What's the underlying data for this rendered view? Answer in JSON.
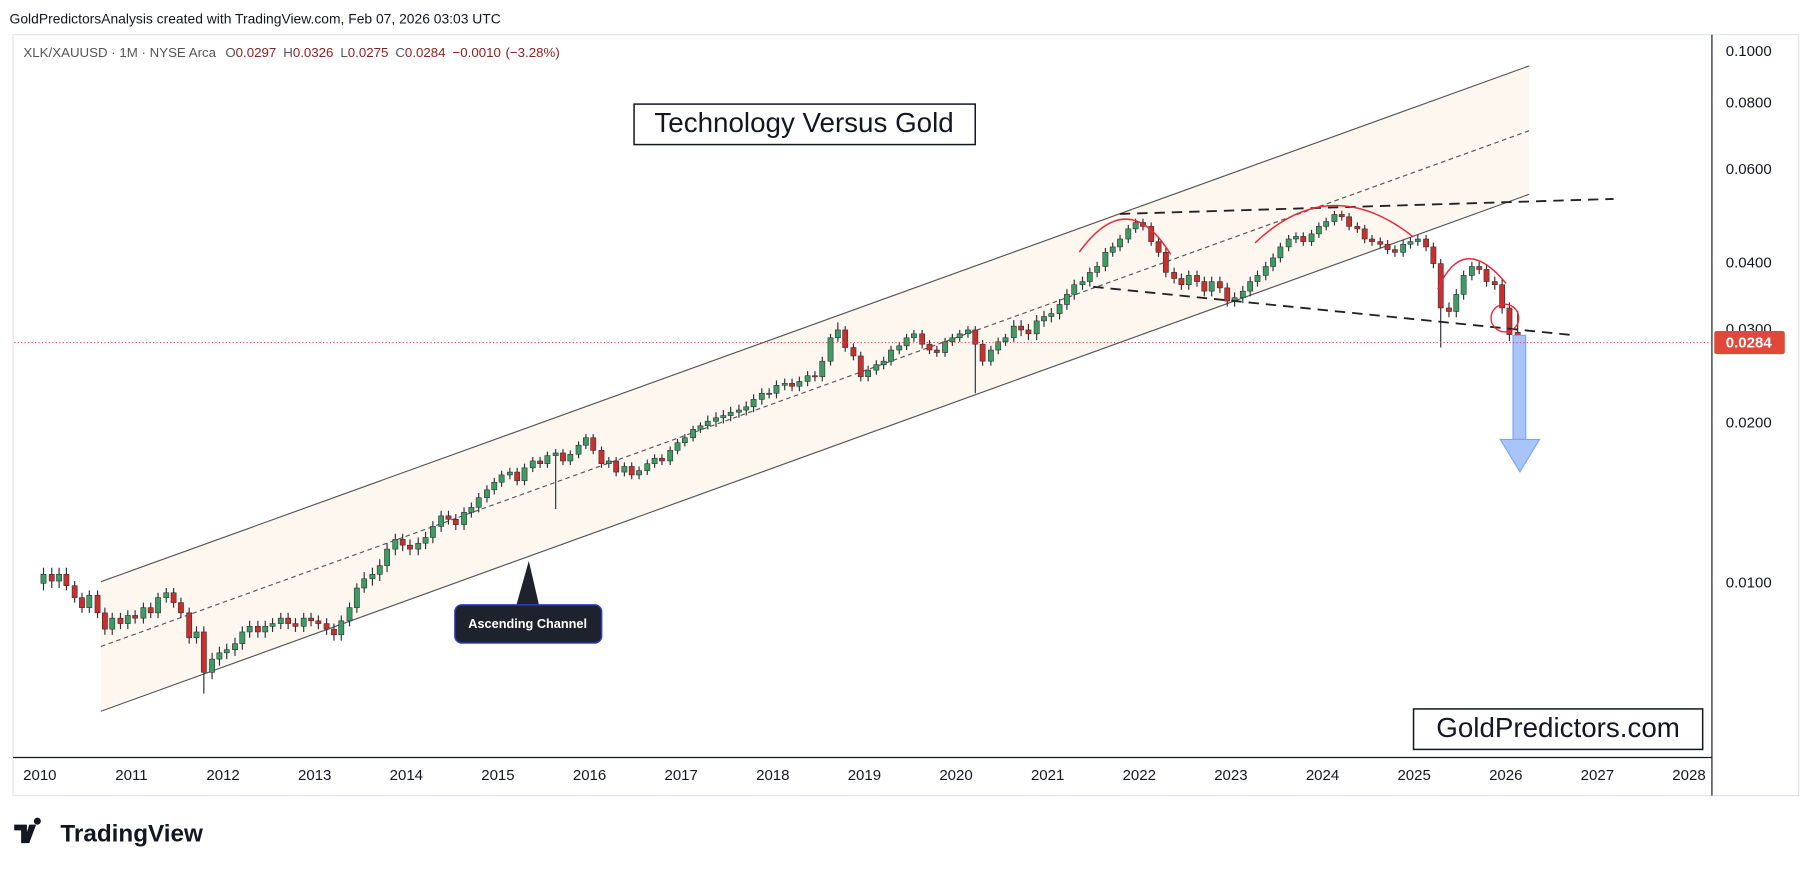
{
  "attribution": "GoldPredictorsAnalysis created with TradingView.com, Feb 07, 2026 03:03 UTC",
  "header": {
    "symbol": "XLK/XAUUSD · 1M · NYSE Arca",
    "ohlc_letters": [
      "O",
      "H",
      "L",
      "C"
    ],
    "change": {
      "value": -0.001,
      "label": "−0.0010"
    },
    "change_pct": {
      "value": -3.28,
      "label": "(−3.28%)"
    }
  },
  "annotations": {
    "callout": "Ascending Channel",
    "brand_box": "GoldPredictors.com"
  },
  "footer_brand": "TradingView",
  "chart_data": {
    "type": "candlestick",
    "title": "Technology Versus Gold",
    "log_scale": true,
    "grid": false,
    "up_color": "#3e9b62",
    "down_color": "#c9302c",
    "last_price_color": "#e0483a",
    "xlim": [
      2009.72,
      2028.25
    ],
    "xticks": [
      2010,
      2011,
      2012,
      2013,
      2014,
      2015,
      2016,
      2017,
      2018,
      2019,
      2020,
      2021,
      2022,
      2023,
      2024,
      2025,
      2026,
      2027,
      2028
    ],
    "ylim": [
      0.0047,
      0.1079
    ],
    "yticks": [
      {
        "value": 0.01,
        "label": "0.0100"
      },
      {
        "value": 0.02,
        "label": "0.0200"
      },
      {
        "value": 0.03,
        "label": "0.0300"
      },
      {
        "value": 0.04,
        "label": "0.0400"
      },
      {
        "value": 0.06,
        "label": "0.0600"
      },
      {
        "value": 0.08,
        "label": "0.0800"
      },
      {
        "value": 0.1,
        "label": "0.1000"
      }
    ],
    "x": [
      2010.04,
      2010.13,
      2010.21,
      2010.29,
      2010.38,
      2010.46,
      2010.54,
      2010.63,
      2010.71,
      2010.79,
      2010.88,
      2010.96,
      2011.04,
      2011.13,
      2011.21,
      2011.29,
      2011.38,
      2011.46,
      2011.54,
      2011.63,
      2011.71,
      2011.79,
      2011.88,
      2011.96,
      2012.04,
      2012.13,
      2012.21,
      2012.29,
      2012.38,
      2012.46,
      2012.54,
      2012.63,
      2012.71,
      2012.79,
      2012.88,
      2012.96,
      2013.04,
      2013.13,
      2013.21,
      2013.29,
      2013.38,
      2013.46,
      2013.54,
      2013.63,
      2013.71,
      2013.79,
      2013.88,
      2013.96,
      2014.04,
      2014.13,
      2014.21,
      2014.29,
      2014.38,
      2014.46,
      2014.54,
      2014.63,
      2014.71,
      2014.79,
      2014.88,
      2014.96,
      2015.04,
      2015.13,
      2015.21,
      2015.29,
      2015.38,
      2015.46,
      2015.54,
      2015.63,
      2015.71,
      2015.79,
      2015.88,
      2015.96,
      2016.04,
      2016.13,
      2016.21,
      2016.29,
      2016.38,
      2016.46,
      2016.54,
      2016.63,
      2016.71,
      2016.79,
      2016.88,
      2016.96,
      2017.04,
      2017.13,
      2017.21,
      2017.29,
      2017.38,
      2017.46,
      2017.54,
      2017.63,
      2017.71,
      2017.79,
      2017.88,
      2017.96,
      2018.04,
      2018.13,
      2018.21,
      2018.29,
      2018.38,
      2018.46,
      2018.54,
      2018.63,
      2018.71,
      2018.79,
      2018.88,
      2018.96,
      2019.04,
      2019.13,
      2019.21,
      2019.29,
      2019.38,
      2019.46,
      2019.54,
      2019.63,
      2019.71,
      2019.79,
      2019.88,
      2019.96,
      2020.04,
      2020.13,
      2020.21,
      2020.29,
      2020.38,
      2020.46,
      2020.54,
      2020.63,
      2020.71,
      2020.79,
      2020.88,
      2020.96,
      2021.04,
      2021.13,
      2021.21,
      2021.29,
      2021.38,
      2021.46,
      2021.54,
      2021.63,
      2021.71,
      2021.79,
      2021.88,
      2021.96,
      2022.04,
      2022.13,
      2022.21,
      2022.29,
      2022.38,
      2022.46,
      2022.54,
      2022.63,
      2022.71,
      2022.79,
      2022.88,
      2022.96,
      2023.04,
      2023.13,
      2023.21,
      2023.29,
      2023.38,
      2023.46,
      2023.54,
      2023.63,
      2023.71,
      2023.79,
      2023.88,
      2023.96,
      2024.04,
      2024.13,
      2024.21,
      2024.29,
      2024.38,
      2024.46,
      2024.54,
      2024.63,
      2024.71,
      2024.79,
      2024.88,
      2024.96,
      2025.04,
      2025.13,
      2025.21,
      2025.29,
      2025.38,
      2025.46,
      2025.54,
      2025.63,
      2025.71,
      2025.79,
      2025.88,
      2025.96,
      2026.04,
      2026.13
    ],
    "open": [
      0.01,
      0.0104,
      0.0101,
      0.0104,
      0.0099,
      0.0094,
      0.009,
      0.0095,
      0.0088,
      0.0082,
      0.0086,
      0.0084,
      0.0087,
      0.0086,
      0.009,
      0.0088,
      0.0094,
      0.0096,
      0.0092,
      0.0088,
      0.0079,
      0.0081,
      0.0068,
      0.0072,
      0.0074,
      0.0075,
      0.0077,
      0.0081,
      0.0083,
      0.0081,
      0.0083,
      0.0084,
      0.0086,
      0.0084,
      0.0083,
      0.0086,
      0.0085,
      0.0084,
      0.0082,
      0.008,
      0.0085,
      0.009,
      0.0098,
      0.0102,
      0.0104,
      0.0108,
      0.0116,
      0.0121,
      0.0118,
      0.0116,
      0.0119,
      0.0122,
      0.0128,
      0.0134,
      0.0132,
      0.0129,
      0.0136,
      0.0139,
      0.0145,
      0.015,
      0.0155,
      0.016,
      0.0162,
      0.0156,
      0.0165,
      0.017,
      0.0168,
      0.0174,
      0.0176,
      0.017,
      0.0175,
      0.0182,
      0.0188,
      0.0178,
      0.0168,
      0.017,
      0.0162,
      0.0166,
      0.016,
      0.0163,
      0.0168,
      0.0172,
      0.017,
      0.0178,
      0.0184,
      0.0188,
      0.0195,
      0.0198,
      0.0202,
      0.0205,
      0.0207,
      0.021,
      0.0212,
      0.0215,
      0.0222,
      0.0228,
      0.0228,
      0.0236,
      0.0238,
      0.0235,
      0.024,
      0.0246,
      0.0245,
      0.0262,
      0.029,
      0.03,
      0.0278,
      0.0268,
      0.0245,
      0.0252,
      0.0258,
      0.0262,
      0.0275,
      0.028,
      0.029,
      0.0295,
      0.0282,
      0.0275,
      0.0272,
      0.0285,
      0.029,
      0.0295,
      0.03,
      0.0282,
      0.0262,
      0.0275,
      0.0285,
      0.029,
      0.0305,
      0.03,
      0.0295,
      0.0312,
      0.0318,
      0.0322,
      0.0335,
      0.035,
      0.0365,
      0.037,
      0.0385,
      0.0395,
      0.042,
      0.043,
      0.0445,
      0.0465,
      0.0478,
      0.047,
      0.044,
      0.042,
      0.0385,
      0.0375,
      0.0365,
      0.038,
      0.037,
      0.0355,
      0.037,
      0.036,
      0.034,
      0.0345,
      0.0355,
      0.037,
      0.038,
      0.0395,
      0.041,
      0.043,
      0.0445,
      0.045,
      0.044,
      0.0455,
      0.047,
      0.048,
      0.0495,
      0.049,
      0.047,
      0.0465,
      0.0445,
      0.044,
      0.0435,
      0.0425,
      0.042,
      0.0435,
      0.044,
      0.0445,
      0.043,
      0.04,
      0.033,
      0.0325,
      0.035,
      0.038,
      0.0395,
      0.039,
      0.037,
      0.0365,
      0.033,
      0.0297
    ],
    "high": [
      0.0107,
      0.0107,
      0.0107,
      0.0107,
      0.0101,
      0.0096,
      0.0097,
      0.0097,
      0.009,
      0.0088,
      0.0088,
      0.0089,
      0.0089,
      0.0092,
      0.0092,
      0.0096,
      0.0098,
      0.0098,
      0.0094,
      0.009,
      0.0083,
      0.0083,
      0.0074,
      0.0076,
      0.0077,
      0.0079,
      0.0083,
      0.0085,
      0.0085,
      0.0085,
      0.0086,
      0.0088,
      0.0088,
      0.0086,
      0.0088,
      0.0088,
      0.0087,
      0.0086,
      0.0084,
      0.0087,
      0.0092,
      0.01,
      0.0105,
      0.0107,
      0.0111,
      0.0119,
      0.0124,
      0.0124,
      0.0121,
      0.0122,
      0.0125,
      0.0131,
      0.0137,
      0.0137,
      0.0135,
      0.0139,
      0.0142,
      0.0148,
      0.0153,
      0.0158,
      0.0163,
      0.0165,
      0.0165,
      0.0168,
      0.0173,
      0.0173,
      0.0177,
      0.0179,
      0.0179,
      0.0178,
      0.0185,
      0.0191,
      0.0191,
      0.0181,
      0.0173,
      0.0173,
      0.0169,
      0.0169,
      0.0166,
      0.0171,
      0.0175,
      0.0175,
      0.0181,
      0.0187,
      0.0191,
      0.0198,
      0.0201,
      0.0207,
      0.021,
      0.0212,
      0.0215,
      0.0217,
      0.022,
      0.0227,
      0.0233,
      0.0233,
      0.0241,
      0.0243,
      0.0243,
      0.0245,
      0.0251,
      0.0251,
      0.0267,
      0.0295,
      0.031,
      0.0305,
      0.0283,
      0.0273,
      0.0257,
      0.0263,
      0.0267,
      0.028,
      0.0285,
      0.0295,
      0.03,
      0.03,
      0.0287,
      0.028,
      0.029,
      0.0295,
      0.03,
      0.0305,
      0.0305,
      0.0287,
      0.028,
      0.029,
      0.0295,
      0.0313,
      0.0313,
      0.0308,
      0.032,
      0.0326,
      0.033,
      0.0343,
      0.0358,
      0.0373,
      0.0378,
      0.0393,
      0.0403,
      0.0428,
      0.0438,
      0.0453,
      0.0473,
      0.0486,
      0.0486,
      0.0478,
      0.0448,
      0.0428,
      0.0393,
      0.0383,
      0.0388,
      0.0388,
      0.0378,
      0.0378,
      0.0378,
      0.0368,
      0.0353,
      0.0363,
      0.0378,
      0.0388,
      0.0403,
      0.0418,
      0.0438,
      0.0453,
      0.0458,
      0.0458,
      0.0463,
      0.0478,
      0.0488,
      0.0503,
      0.0503,
      0.0498,
      0.0478,
      0.0473,
      0.0453,
      0.0448,
      0.0443,
      0.0433,
      0.0443,
      0.0448,
      0.0453,
      0.0453,
      0.0438,
      0.0408,
      0.0338,
      0.0358,
      0.0388,
      0.0403,
      0.0403,
      0.0398,
      0.0378,
      0.0373,
      0.0338,
      0.0326
    ],
    "low": [
      0.0097,
      0.0098,
      0.0098,
      0.0097,
      0.0092,
      0.0088,
      0.0088,
      0.0086,
      0.008,
      0.008,
      0.0082,
      0.0082,
      0.0084,
      0.0084,
      0.0086,
      0.0086,
      0.0092,
      0.009,
      0.0086,
      0.0077,
      0.0077,
      0.0062,
      0.0066,
      0.007,
      0.0072,
      0.0073,
      0.0075,
      0.0079,
      0.0079,
      0.0079,
      0.0081,
      0.0082,
      0.0082,
      0.0081,
      0.0081,
      0.0083,
      0.0082,
      0.008,
      0.0078,
      0.0078,
      0.0083,
      0.0088,
      0.0096,
      0.0099,
      0.0101,
      0.0105,
      0.0113,
      0.0115,
      0.0113,
      0.0113,
      0.0116,
      0.0119,
      0.0125,
      0.0129,
      0.0126,
      0.0126,
      0.0133,
      0.0136,
      0.0142,
      0.0147,
      0.0152,
      0.0157,
      0.0153,
      0.0153,
      0.0162,
      0.0165,
      0.0165,
      0.0138,
      0.0167,
      0.0167,
      0.0172,
      0.0179,
      0.0175,
      0.0165,
      0.0165,
      0.0159,
      0.0159,
      0.0157,
      0.0157,
      0.016,
      0.0165,
      0.0167,
      0.0167,
      0.0175,
      0.0181,
      0.0185,
      0.0192,
      0.0195,
      0.0197,
      0.02,
      0.0202,
      0.0205,
      0.0207,
      0.021,
      0.0217,
      0.0223,
      0.0223,
      0.0231,
      0.023,
      0.023,
      0.0235,
      0.024,
      0.024,
      0.0257,
      0.0285,
      0.0273,
      0.0263,
      0.024,
      0.024,
      0.0247,
      0.0253,
      0.0257,
      0.027,
      0.0275,
      0.0285,
      0.0277,
      0.027,
      0.0267,
      0.0267,
      0.028,
      0.0285,
      0.029,
      0.0228,
      0.0257,
      0.0257,
      0.027,
      0.028,
      0.0285,
      0.0292,
      0.0287,
      0.0287,
      0.0304,
      0.031,
      0.0314,
      0.0327,
      0.0342,
      0.0357,
      0.0362,
      0.0377,
      0.0387,
      0.0412,
      0.0422,
      0.0437,
      0.0457,
      0.0462,
      0.0432,
      0.0412,
      0.0377,
      0.0367,
      0.0357,
      0.0357,
      0.0362,
      0.0347,
      0.0347,
      0.0352,
      0.0332,
      0.0332,
      0.0337,
      0.0347,
      0.0362,
      0.0372,
      0.0387,
      0.0402,
      0.0422,
      0.0437,
      0.0432,
      0.0432,
      0.0447,
      0.0462,
      0.0472,
      0.0482,
      0.0462,
      0.0457,
      0.0437,
      0.0432,
      0.0427,
      0.0417,
      0.0412,
      0.0412,
      0.0427,
      0.0432,
      0.0422,
      0.0392,
      0.0278,
      0.0317,
      0.0317,
      0.0342,
      0.0372,
      0.0382,
      0.0362,
      0.0357,
      0.0322,
      0.0286,
      0.0275
    ],
    "close": [
      0.0104,
      0.0101,
      0.0104,
      0.0099,
      0.0094,
      0.009,
      0.0095,
      0.0088,
      0.0082,
      0.0086,
      0.0084,
      0.0087,
      0.0086,
      0.009,
      0.0088,
      0.0094,
      0.0096,
      0.0092,
      0.0088,
      0.0079,
      0.0081,
      0.0068,
      0.0072,
      0.0074,
      0.0075,
      0.0077,
      0.0081,
      0.0083,
      0.0081,
      0.0083,
      0.0084,
      0.0086,
      0.0084,
      0.0083,
      0.0086,
      0.0085,
      0.0084,
      0.0082,
      0.008,
      0.0085,
      0.009,
      0.0098,
      0.0102,
      0.0104,
      0.0108,
      0.0116,
      0.0121,
      0.0118,
      0.0116,
      0.0119,
      0.0122,
      0.0128,
      0.0134,
      0.0132,
      0.0129,
      0.0136,
      0.0139,
      0.0145,
      0.015,
      0.0155,
      0.016,
      0.0162,
      0.0156,
      0.0165,
      0.017,
      0.0168,
      0.0174,
      0.0176,
      0.017,
      0.0175,
      0.0182,
      0.0188,
      0.0178,
      0.0168,
      0.017,
      0.0162,
      0.0166,
      0.016,
      0.0163,
      0.0168,
      0.0172,
      0.017,
      0.0178,
      0.0184,
      0.0188,
      0.0195,
      0.0198,
      0.0202,
      0.0205,
      0.0207,
      0.021,
      0.0212,
      0.0215,
      0.0222,
      0.0228,
      0.0228,
      0.0236,
      0.0238,
      0.0235,
      0.024,
      0.0246,
      0.0245,
      0.0262,
      0.029,
      0.03,
      0.0278,
      0.0268,
      0.0245,
      0.0252,
      0.0258,
      0.0262,
      0.0275,
      0.028,
      0.029,
      0.0295,
      0.0282,
      0.0275,
      0.0272,
      0.0285,
      0.029,
      0.0295,
      0.03,
      0.0282,
      0.0262,
      0.0275,
      0.0285,
      0.029,
      0.0305,
      0.03,
      0.0295,
      0.0312,
      0.0318,
      0.0322,
      0.0335,
      0.035,
      0.0365,
      0.037,
      0.0385,
      0.0395,
      0.042,
      0.043,
      0.0445,
      0.0465,
      0.0478,
      0.047,
      0.044,
      0.042,
      0.0385,
      0.0375,
      0.0365,
      0.038,
      0.037,
      0.0355,
      0.037,
      0.036,
      0.034,
      0.0345,
      0.0355,
      0.037,
      0.038,
      0.0395,
      0.041,
      0.043,
      0.0445,
      0.045,
      0.044,
      0.0455,
      0.047,
      0.048,
      0.0495,
      0.049,
      0.047,
      0.0465,
      0.0445,
      0.044,
      0.0435,
      0.0425,
      0.042,
      0.0435,
      0.044,
      0.0445,
      0.043,
      0.04,
      0.033,
      0.0325,
      0.035,
      0.038,
      0.0395,
      0.039,
      0.037,
      0.0365,
      0.033,
      0.0294,
      0.0284
    ]
  }
}
